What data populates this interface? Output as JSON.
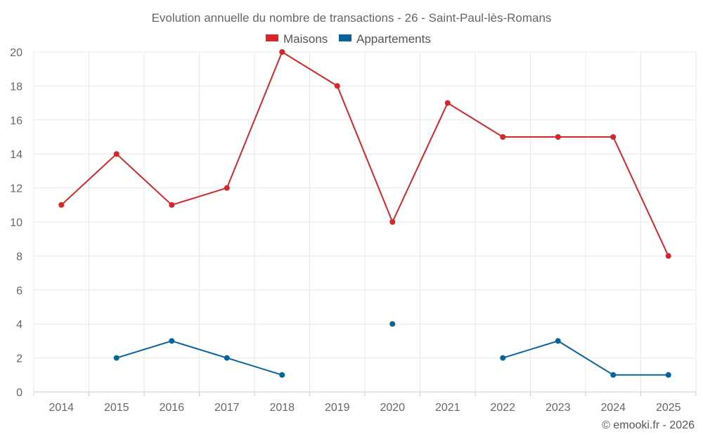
{
  "chart_data": {
    "type": "line",
    "title": "Evolution annuelle du nombre de transactions - 26 - Saint-Paul-lès-Romans",
    "categories": [
      "2014",
      "2015",
      "2016",
      "2017",
      "2018",
      "2019",
      "2020",
      "2021",
      "2022",
      "2023",
      "2024",
      "2025"
    ],
    "series": [
      {
        "name": "Maisons",
        "color": "#d62728",
        "values": [
          11,
          14,
          11,
          12,
          20,
          18,
          10,
          17,
          15,
          15,
          15,
          8
        ]
      },
      {
        "name": "Appartements",
        "color": "#08639c",
        "values": [
          null,
          2,
          3,
          2,
          1,
          null,
          4,
          null,
          2,
          3,
          1,
          1
        ]
      }
    ],
    "ylim": [
      0,
      20
    ],
    "yticks": [
      0,
      2,
      4,
      6,
      8,
      10,
      12,
      14,
      16,
      18,
      20
    ],
    "xlabel": "",
    "ylabel": "",
    "grid": true,
    "legend": "top-center"
  },
  "footer": {
    "credit": "© emooki.fr - 2026"
  }
}
